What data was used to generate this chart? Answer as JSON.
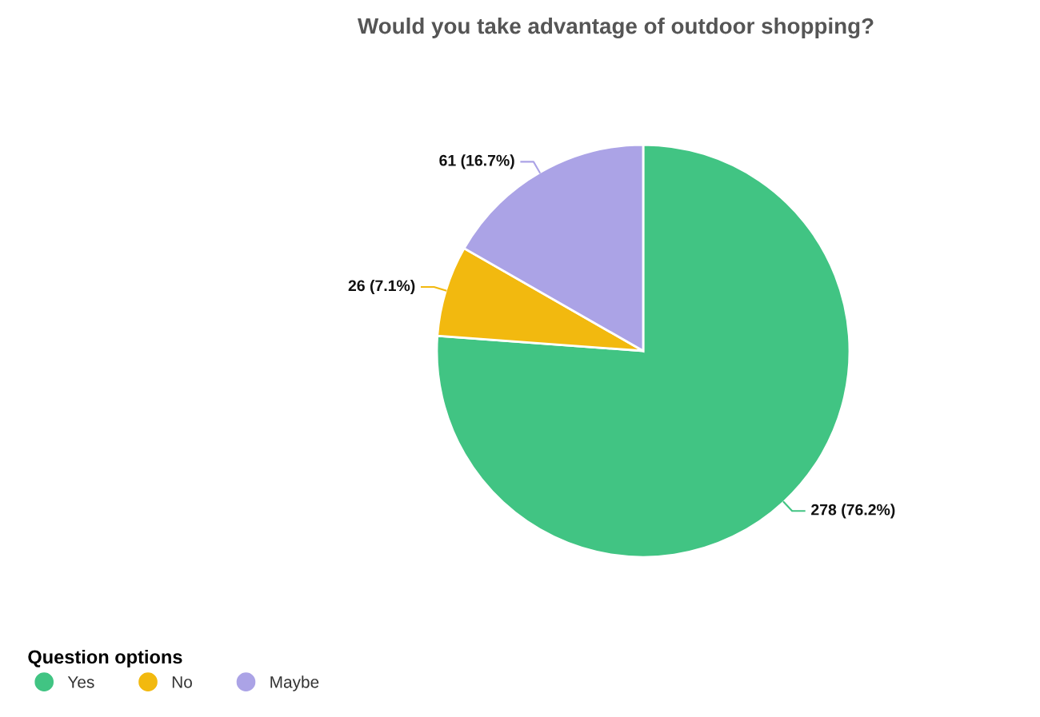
{
  "chart_data": {
    "type": "pie",
    "title": "Would you take advantage of outdoor shopping?",
    "categories": [
      "Yes",
      "No",
      "Maybe"
    ],
    "values": [
      278,
      26,
      61
    ],
    "colors": [
      "#41c483",
      "#f2b90f",
      "#aba3e6"
    ],
    "value_labels": [
      "278 (76.2%)",
      "26 (7.1%)",
      "61 (16.7%)"
    ],
    "legend_title": "Question options",
    "legend": "bottom left"
  }
}
